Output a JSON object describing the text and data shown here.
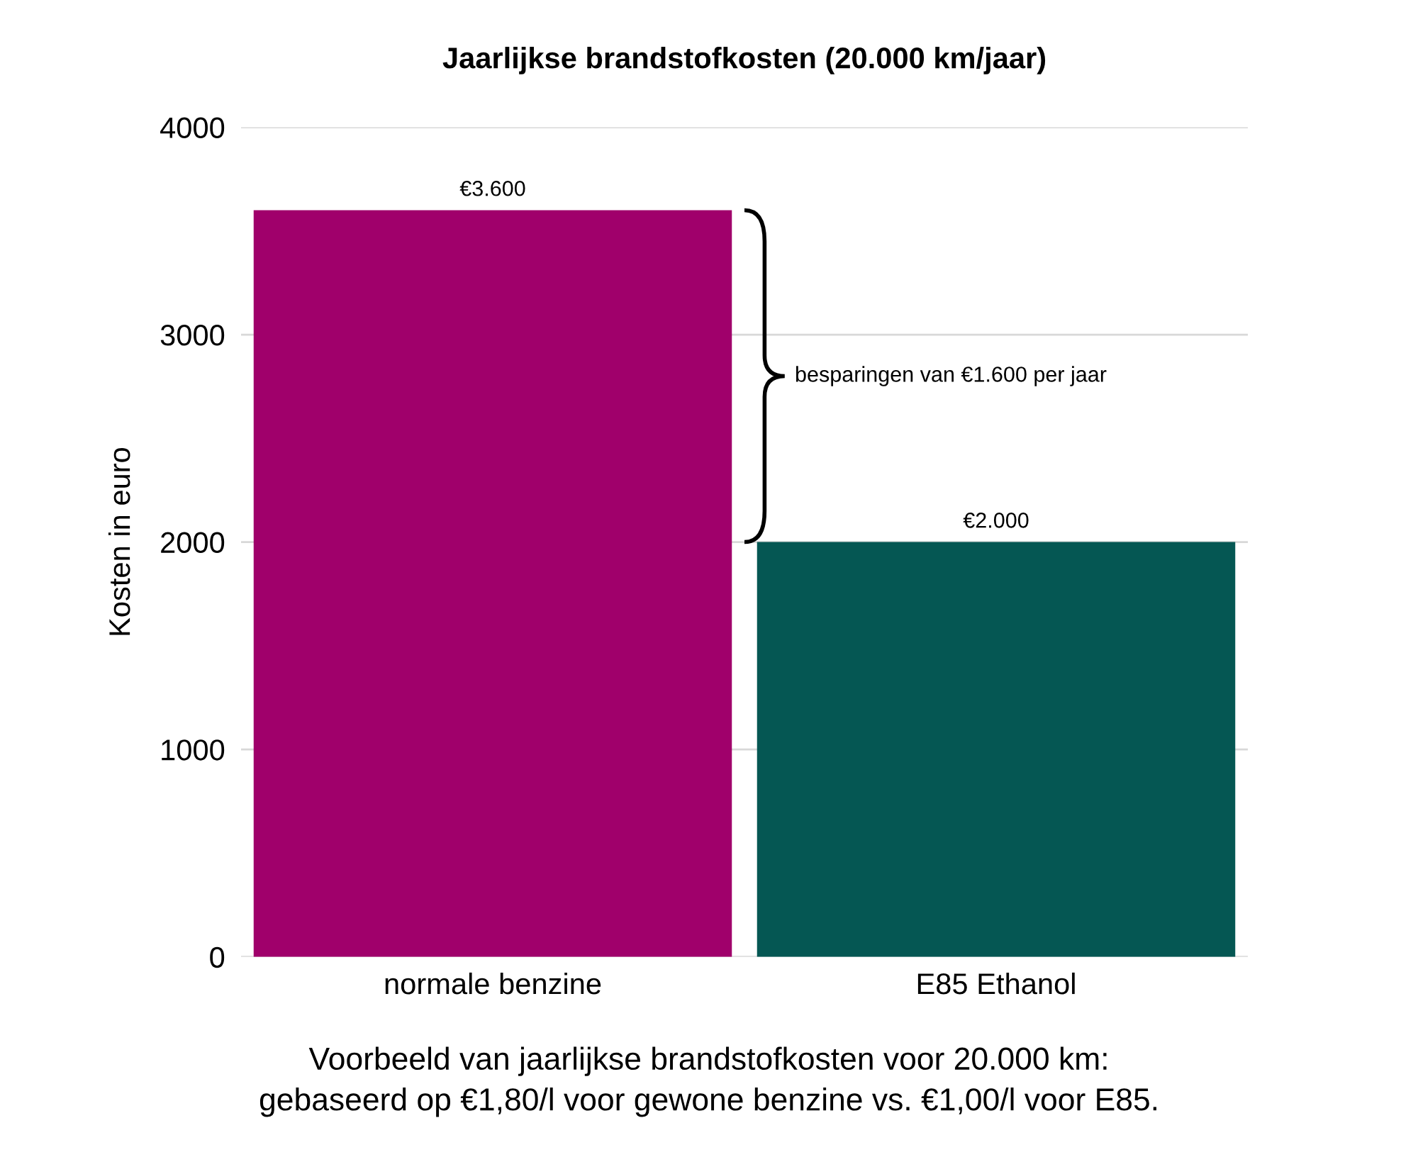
{
  "chart_data": {
    "type": "bar",
    "title": "Jaarlijkse brandstofkosten (20.000 km/jaar)",
    "ylabel": "Kosten in euro",
    "categories": [
      "normale benzine",
      "E85 Ethanol"
    ],
    "values": [
      3600,
      2000
    ],
    "colors": [
      "#a0006b",
      "#055753"
    ],
    "value_labels": [
      "€3.600",
      "€2.000"
    ],
    "ylim": [
      0,
      4000
    ],
    "yticks": [
      0,
      1000,
      2000,
      3000,
      4000
    ],
    "grid": "y",
    "annotations": [
      "besparingen van €1.600 per jaar",
      "Voorbeeld van jaarlijkse brandstofkosten voor 20.000 km:\ngebaseerd op €1,80/l voor gewone benzine vs. €1,00/l voor E85."
    ]
  }
}
